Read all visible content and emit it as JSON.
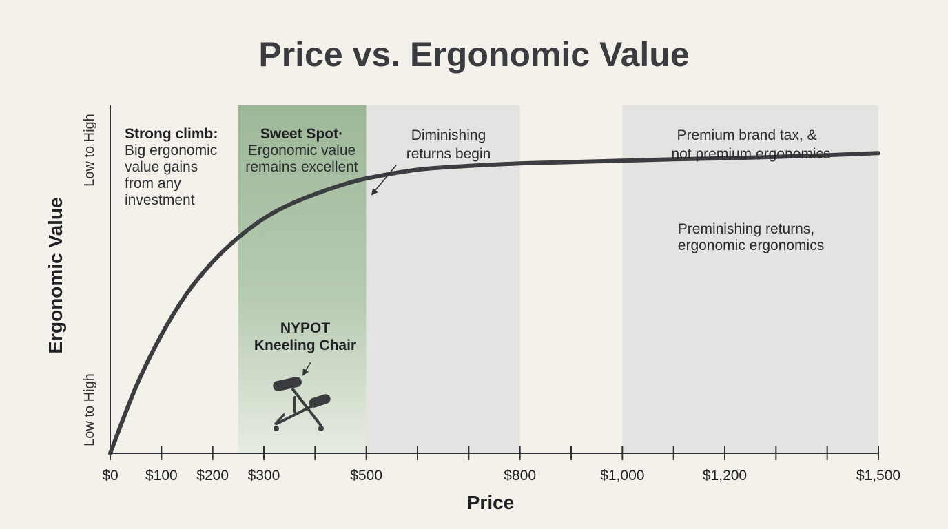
{
  "chart_data": {
    "type": "line",
    "title": "Price vs. Ergonomic Value",
    "xlabel": "Price",
    "ylabel": "Ergonomic Value",
    "y_range_labels": {
      "bottom": "Low to High",
      "top": "Low to High"
    },
    "xlim": [
      0,
      1500
    ],
    "ylim": [
      0,
      100
    ],
    "x_ticks": [
      0,
      100,
      200,
      300,
      400,
      500,
      600,
      700,
      800,
      900,
      1000,
      1100,
      1200,
      1300,
      1400,
      1500
    ],
    "x_tick_labels": [
      {
        "value": 0,
        "label": "$0"
      },
      {
        "value": 100,
        "label": "$100"
      },
      {
        "value": 200,
        "label": "$200"
      },
      {
        "value": 300,
        "label": "$300"
      },
      {
        "value": 500,
        "label": "$500"
      },
      {
        "value": 800,
        "label": "$800"
      },
      {
        "value": 1000,
        "label": "$1,000"
      },
      {
        "value": 1200,
        "label": "$1,200"
      },
      {
        "value": 1500,
        "label": "$1,500"
      }
    ],
    "series": [
      {
        "x": [
          0,
          50,
          100,
          150,
          200,
          250,
          300,
          350,
          400,
          450,
          500,
          600,
          700,
          800,
          900,
          1000,
          1100,
          1200,
          1300,
          1400,
          1500
        ],
        "y": [
          0,
          19,
          34,
          46,
          55,
          62,
          67.5,
          71.5,
          74.5,
          77,
          79,
          81.5,
          82.6,
          83.3,
          83.7,
          84.1,
          84.5,
          84.8,
          85.2,
          85.7,
          86.3
        ],
        "color": "#3b3d41"
      }
    ],
    "regions": [
      {
        "x_start": 250,
        "x_end": 500,
        "color": "#9fb89b",
        "label_bold": "Sweet Spot·",
        "lines": [
          "Ergonomic value",
          "remains excellent"
        ]
      },
      {
        "x_start": 500,
        "x_end": 800,
        "color": "#e3e3e2",
        "lines": [
          "Diminishing",
          "returns begin"
        ]
      },
      {
        "x_start": 1000,
        "x_end": 1500,
        "color": "#e3e3e2",
        "lines": [
          "Premium brand tax, &",
          "not premium ergonomics"
        ],
        "extra_lines": [
          "Preminishing returns,",
          "ergonomic ergonomics"
        ]
      }
    ],
    "annotations": {
      "climb": {
        "bold": "Strong climb:",
        "lines": [
          "Big ergonomic",
          "value gains",
          "from any",
          "investment"
        ]
      },
      "product": {
        "lines": [
          "NYPOT",
          "Kneeling Chair"
        ],
        "icon": "kneeling-chair-icon"
      }
    },
    "grid": false,
    "legend": "none"
  }
}
